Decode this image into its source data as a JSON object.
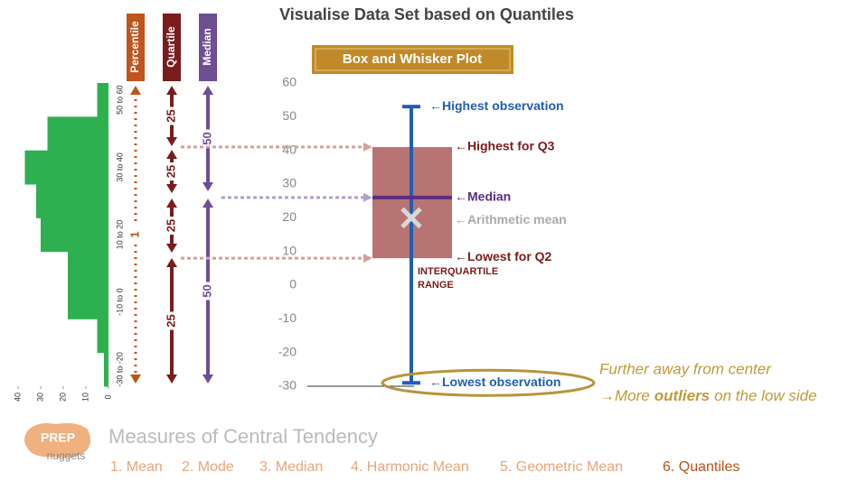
{
  "title": "Visualise Data Set based on Quantiles",
  "button": "Box and Whisker Plot",
  "side_scales": [
    {
      "name": "Percentile",
      "color": "#c0541c",
      "labels": [
        1
      ]
    },
    {
      "name": "Quartile",
      "color": "#7a1c1c",
      "labels": [
        25,
        25,
        25,
        25
      ]
    },
    {
      "name": "Median",
      "color": "#6e4f92",
      "labels": [
        50,
        50
      ]
    }
  ],
  "histogram": {
    "categories": [
      "50 to 60",
      null,
      "30 to 40",
      null,
      "10 to 20",
      null,
      "-10 to 0",
      null,
      "-30 to -20"
    ],
    "values": [
      5,
      27,
      37,
      32,
      30,
      18,
      18,
      5,
      2
    ],
    "color": "#2fb050",
    "xlim": [
      0,
      40
    ],
    "xticks": [
      0,
      10,
      20,
      30,
      40
    ]
  },
  "box_plot": {
    "ylim": [
      -30,
      60
    ],
    "yticks": [
      60,
      50,
      40,
      30,
      20,
      10,
      0,
      -10,
      -20,
      -30
    ],
    "whisker_low": -29,
    "q1": 8,
    "median": 26,
    "mean": 20,
    "q3": 41,
    "whisker_high": 53,
    "box_color": "#b87472",
    "median_color": "#5a2d82",
    "whisker_color": "#1f5fb4",
    "mean_color": "#d8d8d8"
  },
  "annotations": {
    "highest_observation": "←Highest observation",
    "highest_q3": "←Highest for Q3",
    "median": "←Median",
    "mean": "←Arithmetic mean",
    "lowest_q2": "←Lowest for Q2",
    "iqr": [
      "INTERQUARTILE",
      "RANGE"
    ],
    "lowest_observation": "←Lowest observation"
  },
  "note": {
    "line1": "Further away from center",
    "line2": [
      "→More",
      "outliers",
      "on the low side"
    ]
  },
  "footer": {
    "logo": [
      "PREP",
      "nuggets"
    ],
    "heading": "Measures of Central Tendency",
    "nav": [
      "1. Mean",
      "2. Mode",
      "3. Median",
      "4. Harmonic Mean",
      "5. Geometric Mean",
      "6. Quantiles"
    ]
  }
}
